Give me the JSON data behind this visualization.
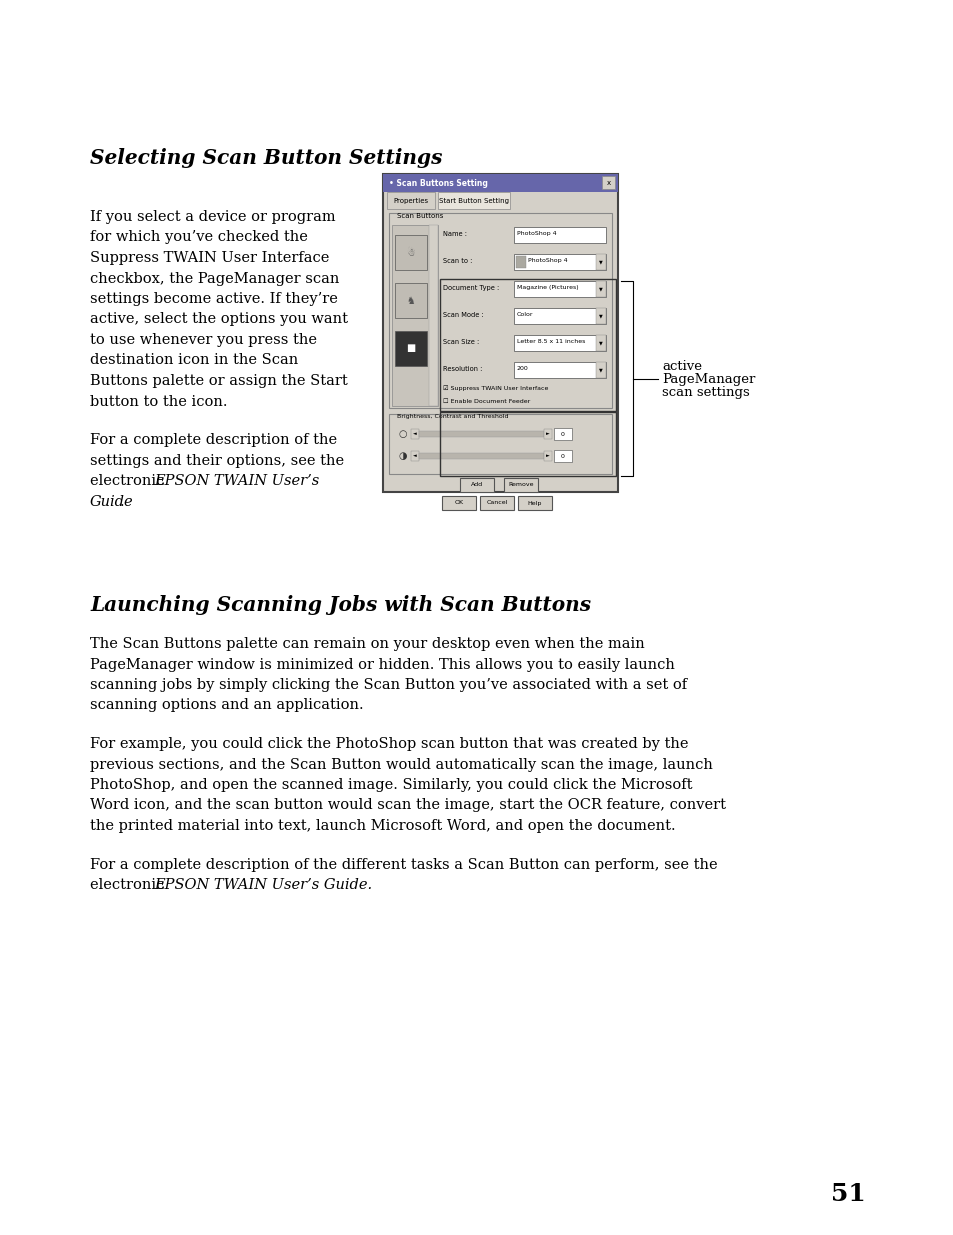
{
  "bg_color": "#ffffff",
  "page_number": "51",
  "section1_title": "Selecting Scan Button Settings",
  "section1_para1_lines": [
    "If you select a device or program",
    "for which you’ve checked the",
    "Suppress TWAIN User Interface",
    "checkbox, the PageManager scan",
    "settings become active. If they’re",
    "active, select the options you want",
    "to use whenever you press the",
    "destination icon in the Scan",
    "Buttons palette or assign the Start",
    "button to the icon."
  ],
  "section1_para2_lines": [
    "For a complete description of the",
    "settings and their options, see the",
    "electronic "
  ],
  "section1_para2_italic": "EPSON TWAIN User’s",
  "section1_para2_italic2": "Guide",
  "section1_para2_end": ".",
  "annotation_line1": "active",
  "annotation_line2": "PageManager",
  "annotation_line3": "scan settings",
  "section2_title": "Launching Scanning Jobs with Scan Buttons",
  "section2_para1_lines": [
    "The Scan Buttons palette can remain on your desktop even when the main",
    "PageManager window is minimized or hidden. This allows you to easily launch",
    "scanning jobs by simply clicking the Scan Button you’ve associated with a set of",
    "scanning options and an application."
  ],
  "section2_para2_lines": [
    "For example, you could click the PhotoShop scan button that was created by the",
    "previous sections, and the Scan Button would automatically scan the image, launch",
    "PhotoShop, and open the scanned image. Similarly, you could click the Microsoft",
    "Word icon, and the scan button would scan the image, start the OCR feature, convert",
    "the printed material into text, launch Microsoft Word, and open the document."
  ],
  "section2_para3_line1": "For a complete description of the different tasks a Scan Button can perform, see the",
  "section2_para3_line2_norm": "electronic ",
  "section2_para3_line2_italic": "EPSON TWAIN User’s Guide",
  "section2_para3_line2_end": ".",
  "body_fontsize": 10.5,
  "title_fontsize": 14.5,
  "page_num_fontsize": 18,
  "dlg_title": "Scan Buttons Setting",
  "dlg_tab1": "Properties",
  "dlg_tab2": "Start Button Setting",
  "dlg_scan_buttons_label": "Scan Buttons",
  "dlg_field_labels": [
    "Name :",
    "Scan to :",
    "Document Type :",
    "Scan Mode :",
    "Scan Size :",
    "Resolution :"
  ],
  "dlg_field_values": [
    "PhotoShop 4",
    "  PhotoShop 4",
    "Magazine (Pictures)",
    "Color",
    "Letter 8.5 x 11 inches",
    "200"
  ],
  "dlg_cb1": "Suppress TWAIN User Interface",
  "dlg_cb2": "Enable Document Feeder",
  "dlg_bright_label": "Brightness, Contrast and Threshold",
  "dlg_btn_add": "Add",
  "dlg_btn_remove": "Remove",
  "dlg_btn_ok": "OK",
  "dlg_btn_cancel": "Cancel",
  "dlg_btn_help": "Help"
}
